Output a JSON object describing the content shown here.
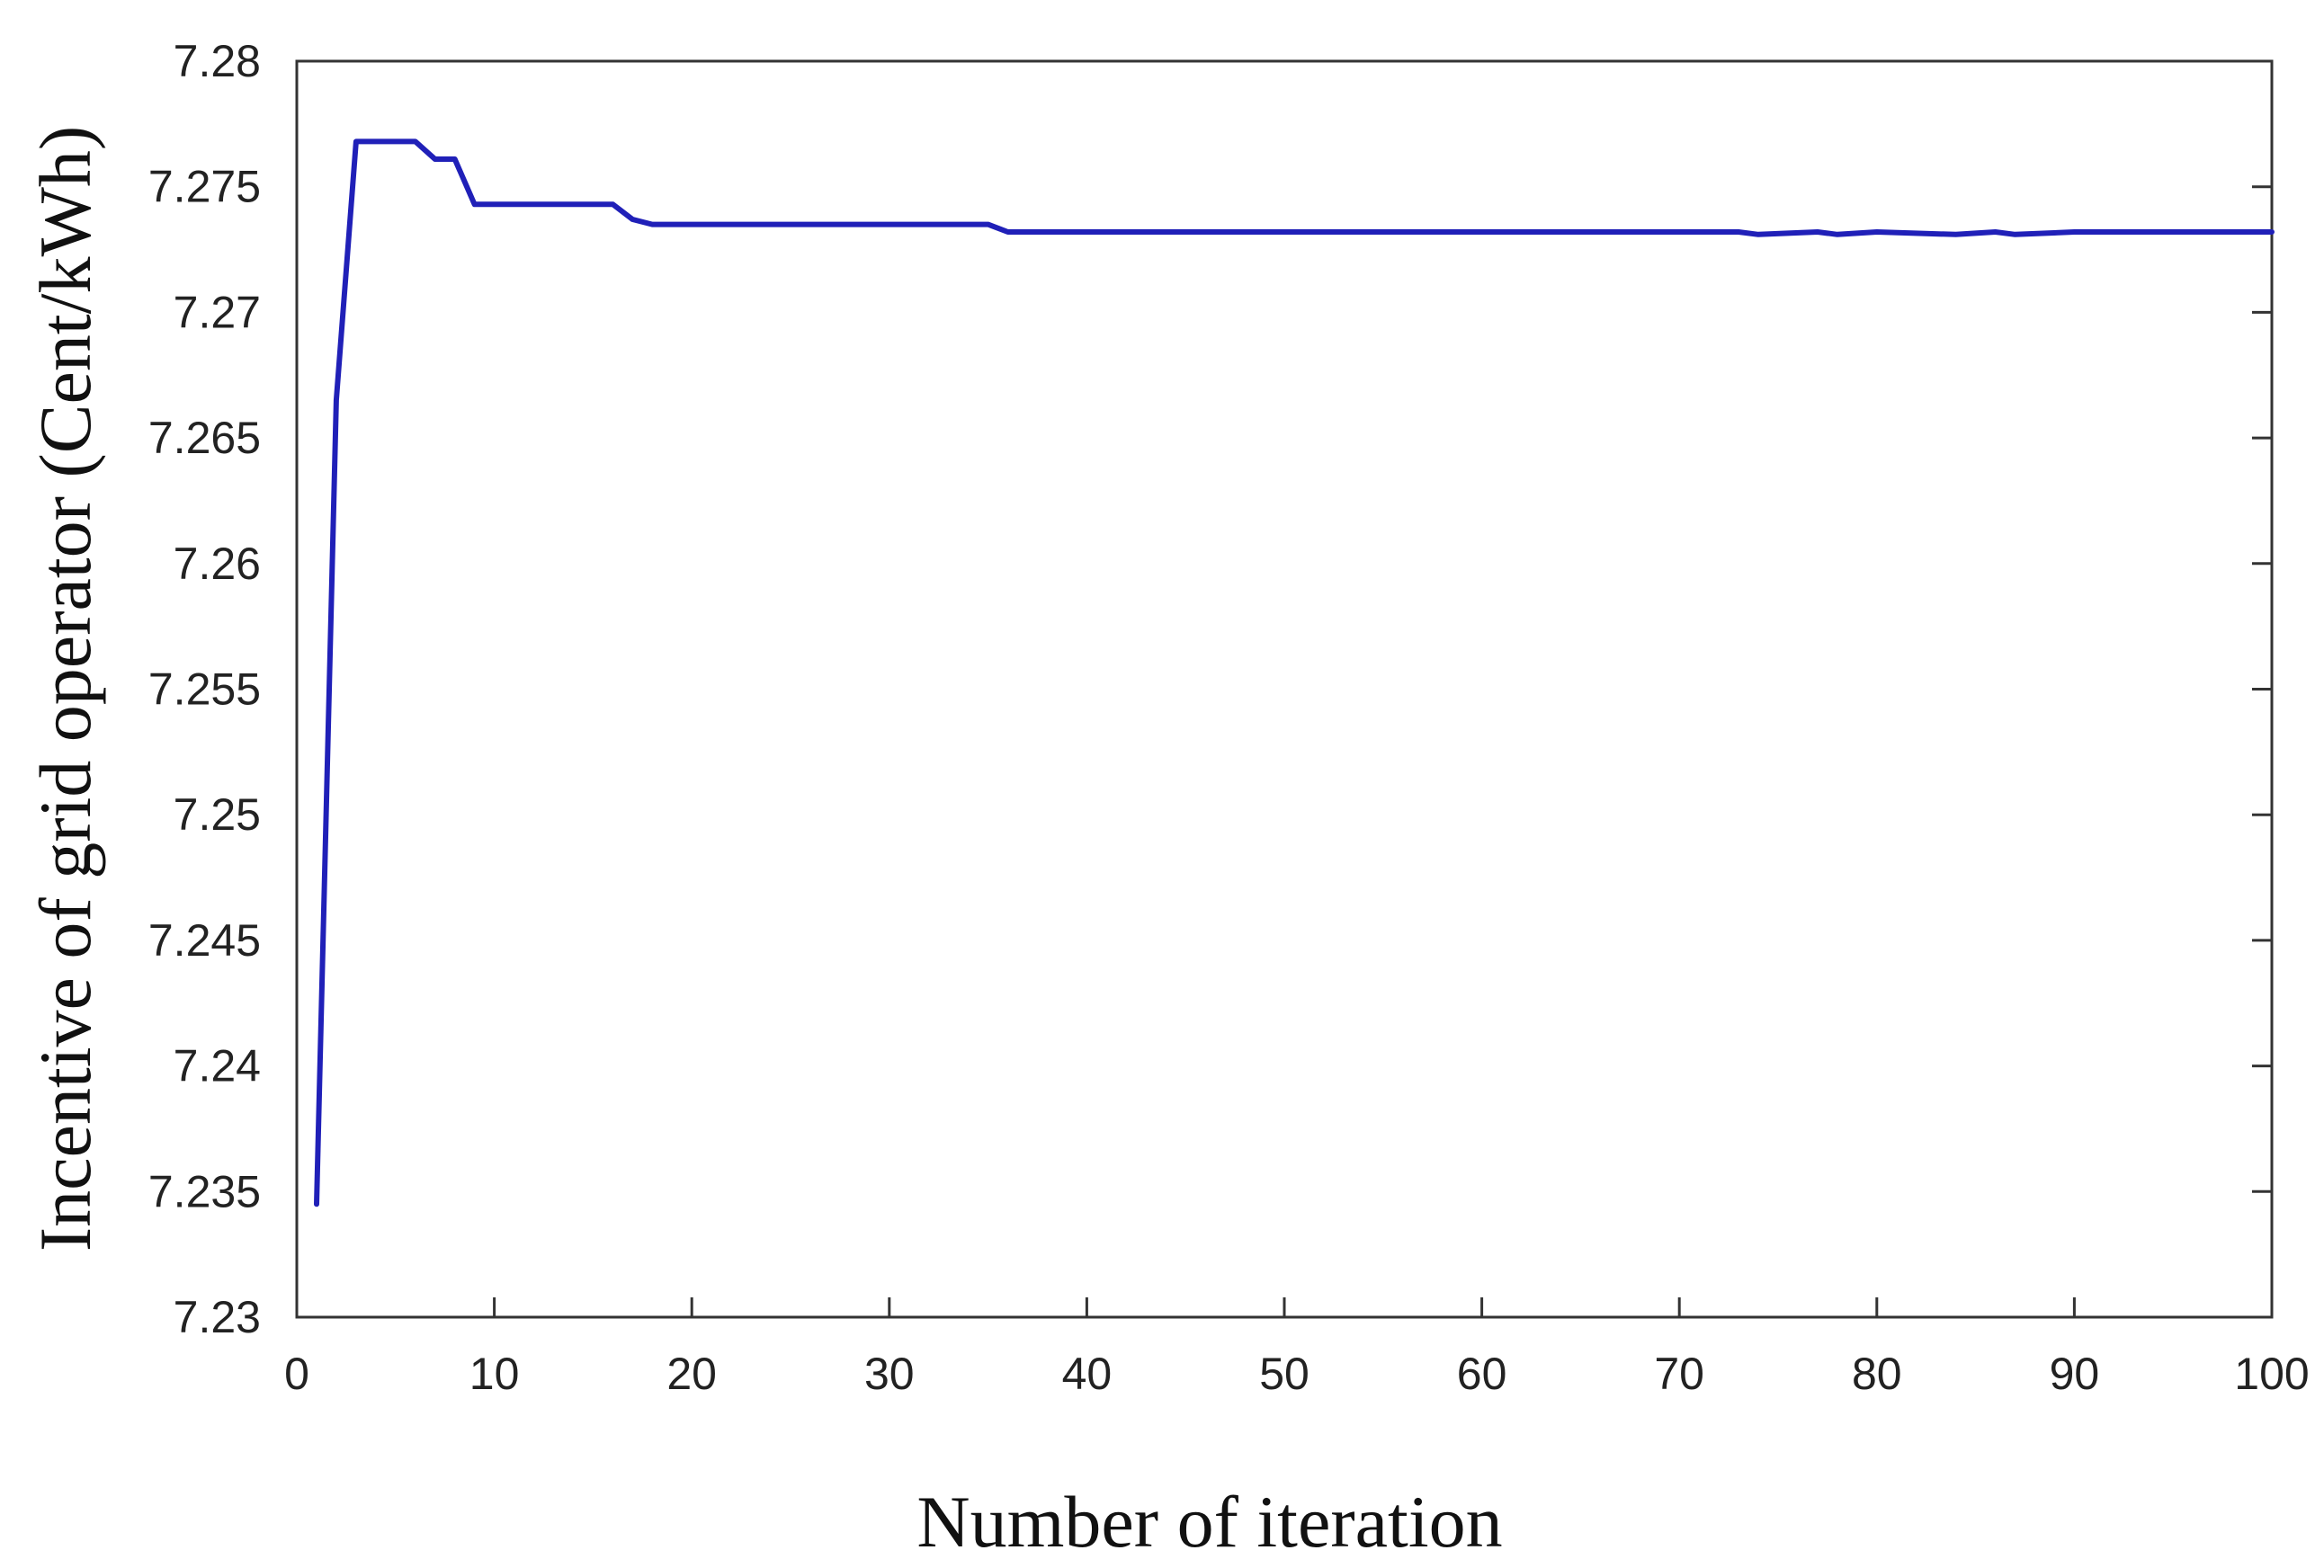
{
  "chart_data": {
    "type": "line",
    "title": "",
    "xlabel": "Number of iteration",
    "ylabel": "Incentive of grid operator (Cent/kWh)",
    "xlim": [
      0,
      100
    ],
    "ylim": [
      7.23,
      7.28
    ],
    "x_ticks": [
      0,
      10,
      20,
      30,
      40,
      50,
      60,
      70,
      80,
      90,
      100
    ],
    "y_ticks": [
      7.23,
      7.235,
      7.24,
      7.245,
      7.25,
      7.255,
      7.26,
      7.265,
      7.27,
      7.275,
      7.28
    ],
    "x_tick_labels": [
      "0",
      "10",
      "20",
      "30",
      "40",
      "50",
      "60",
      "70",
      "80",
      "90",
      "100"
    ],
    "y_tick_labels": [
      "7.23",
      "7.235",
      "7.24",
      "7.245",
      "7.25",
      "7.255",
      "7.26",
      "7.265",
      "7.27",
      "7.275",
      "7.28"
    ],
    "grid": false,
    "line_color": "#2020b8",
    "series": [
      {
        "x": [
          1,
          2,
          3,
          4,
          5,
          6,
          7,
          8,
          9,
          10,
          12,
          14,
          16,
          17,
          18,
          20,
          25,
          30,
          35,
          36,
          40,
          50,
          60,
          70,
          73,
          74,
          77,
          78,
          80,
          84,
          86,
          87,
          90,
          100
        ],
        "y": [
          7.2345,
          7.2665,
          7.2768,
          7.2768,
          7.2768,
          7.2768,
          7.2761,
          7.2761,
          7.2743,
          7.2743,
          7.2743,
          7.2743,
          7.2743,
          7.2737,
          7.2735,
          7.2735,
          7.2735,
          7.2735,
          7.2735,
          7.2732,
          7.2732,
          7.2732,
          7.2732,
          7.2732,
          7.2732,
          7.2731,
          7.2732,
          7.2731,
          7.2732,
          7.2731,
          7.2732,
          7.2731,
          7.2732,
          7.2732
        ]
      }
    ]
  }
}
